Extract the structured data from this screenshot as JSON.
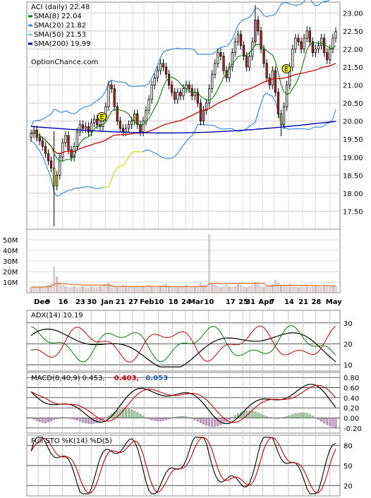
{
  "chart_data": [
    {
      "type": "candlestick",
      "panel": "price",
      "title": "ACI (daily) 22.48",
      "source": "OptionChance.com",
      "legend": [
        {
          "label": "SMA(8) 22.04",
          "color": "#008000"
        },
        {
          "label": "SMA(20) 21.82",
          "color": "#3a8fd8"
        },
        {
          "label": "SMA(50) 21.53",
          "color": "#87ceeb"
        },
        {
          "label": "SMA(200) 19.99",
          "color": "#0000aa"
        }
      ],
      "y_ticks": [
        "23.00",
        "22.50",
        "22.00",
        "21.50",
        "21.00",
        "20.50",
        "20.00",
        "19.50",
        "19.00",
        "18.50",
        "18.00",
        "17.50"
      ],
      "ylim": [
        17.0,
        23.3
      ],
      "x_labels": [
        "Dec",
        "9",
        "16",
        "23",
        "30",
        "Jan",
        "21",
        "27",
        "Feb",
        "10",
        "18",
        "24",
        "Mar",
        "10",
        "17",
        "25",
        "31",
        "Apr",
        "7",
        "14",
        "21",
        "28",
        "May"
      ],
      "earnings_markers": [
        {
          "x": 0.235,
          "y": 20.12,
          "label": "E"
        },
        {
          "x": 0.835,
          "y": 21.45,
          "label": "E"
        }
      ],
      "series": {
        "close": [
          19.65,
          19.75,
          19.55,
          19.45,
          19.3,
          19.1,
          18.9,
          18.7,
          18.2,
          18.5,
          19.0,
          19.4,
          19.6,
          19.2,
          19.0,
          19.3,
          19.7,
          19.9,
          19.8,
          19.85,
          19.7,
          19.95,
          20.05,
          19.9,
          19.85,
          20.1,
          20.4,
          21.0,
          20.9,
          20.4,
          20.0,
          19.8,
          19.7,
          19.8,
          19.9,
          20.0,
          20.2,
          19.9,
          19.7,
          20.0,
          20.3,
          20.6,
          21.0,
          21.2,
          21.4,
          21.6,
          21.5,
          21.3,
          21.0,
          20.8,
          20.6,
          20.8,
          20.7,
          20.9,
          21.0,
          20.9,
          20.7,
          20.8,
          20.5,
          20.0,
          20.3,
          20.5,
          20.9,
          21.3,
          21.6,
          21.9,
          21.8,
          21.4,
          21.2,
          21.5,
          21.9,
          22.2,
          22.4,
          22.1,
          21.8,
          21.5,
          21.8,
          22.2,
          22.8,
          22.5,
          22.0,
          21.6,
          21.2,
          21.0,
          21.4,
          20.8,
          20.2,
          19.9,
          20.4,
          21.0,
          21.5,
          22.0,
          22.3,
          22.2,
          22.0,
          22.3,
          22.5,
          22.2,
          21.9,
          22.0,
          22.1,
          22.3,
          21.9,
          21.7,
          22.0,
          22.3,
          22.48
        ]
      },
      "sma_values": {
        "sma8": 22.04,
        "sma20": 21.82,
        "sma50": 21.53,
        "sma200": 19.99
      }
    },
    {
      "type": "bar",
      "panel": "volume",
      "y_ticks": [
        "50M",
        "40M",
        "30M",
        "20M",
        "10M"
      ],
      "ylim": [
        0,
        60
      ],
      "spike_indices": [
        8,
        62
      ],
      "series": [
        {
          "name": "volume",
          "values": [
            5,
            6,
            5,
            6,
            5,
            6,
            7,
            8,
            24,
            15,
            9,
            7,
            6,
            5,
            5,
            6,
            5,
            5,
            6,
            5,
            4,
            6,
            5,
            5,
            6,
            7,
            8,
            9,
            7,
            6,
            5,
            6,
            7,
            6,
            5,
            5,
            6,
            5,
            6,
            6,
            5,
            7,
            6,
            5,
            5,
            6,
            7,
            8,
            6,
            5,
            5,
            6,
            5,
            5,
            7,
            6,
            5,
            6,
            6,
            9,
            7,
            6,
            55,
            8,
            7,
            6,
            5,
            6,
            7,
            6,
            5,
            6,
            8,
            7,
            6,
            5,
            6,
            7,
            9,
            8,
            6,
            5,
            6,
            7,
            8,
            12,
            9,
            7,
            6,
            7,
            8,
            7,
            6,
            5,
            6,
            7,
            6,
            5,
            6,
            7,
            6,
            5,
            6,
            7,
            6,
            7,
            6
          ]
        }
      ]
    },
    {
      "type": "line",
      "panel": "adx",
      "title": "ADX(14) 10.19",
      "y_ticks": [
        "30",
        "20",
        "10"
      ],
      "ylim": [
        7,
        36
      ],
      "series": [
        {
          "name": "ADX",
          "color": "#000000"
        },
        {
          "name": "+DI",
          "color": "#008000"
        },
        {
          "name": "-DI",
          "color": "#cc0000"
        }
      ]
    },
    {
      "type": "line",
      "panel": "macd",
      "title": "MACD(8,40,9) 0.453,",
      "macd_red": "0.403,",
      "macd_blue": "0.053",
      "y_ticks": [
        "0.80",
        "0.60",
        "0.40",
        "0.20",
        "0.00",
        "-0.20"
      ],
      "ylim": [
        -0.3,
        0.9
      ]
    },
    {
      "type": "line",
      "panel": "stochastic",
      "title": "Full STO %K(14) %D(5)",
      "y_ticks": [
        "80",
        "50",
        "20"
      ],
      "ylim": [
        5,
        95
      ]
    }
  ]
}
